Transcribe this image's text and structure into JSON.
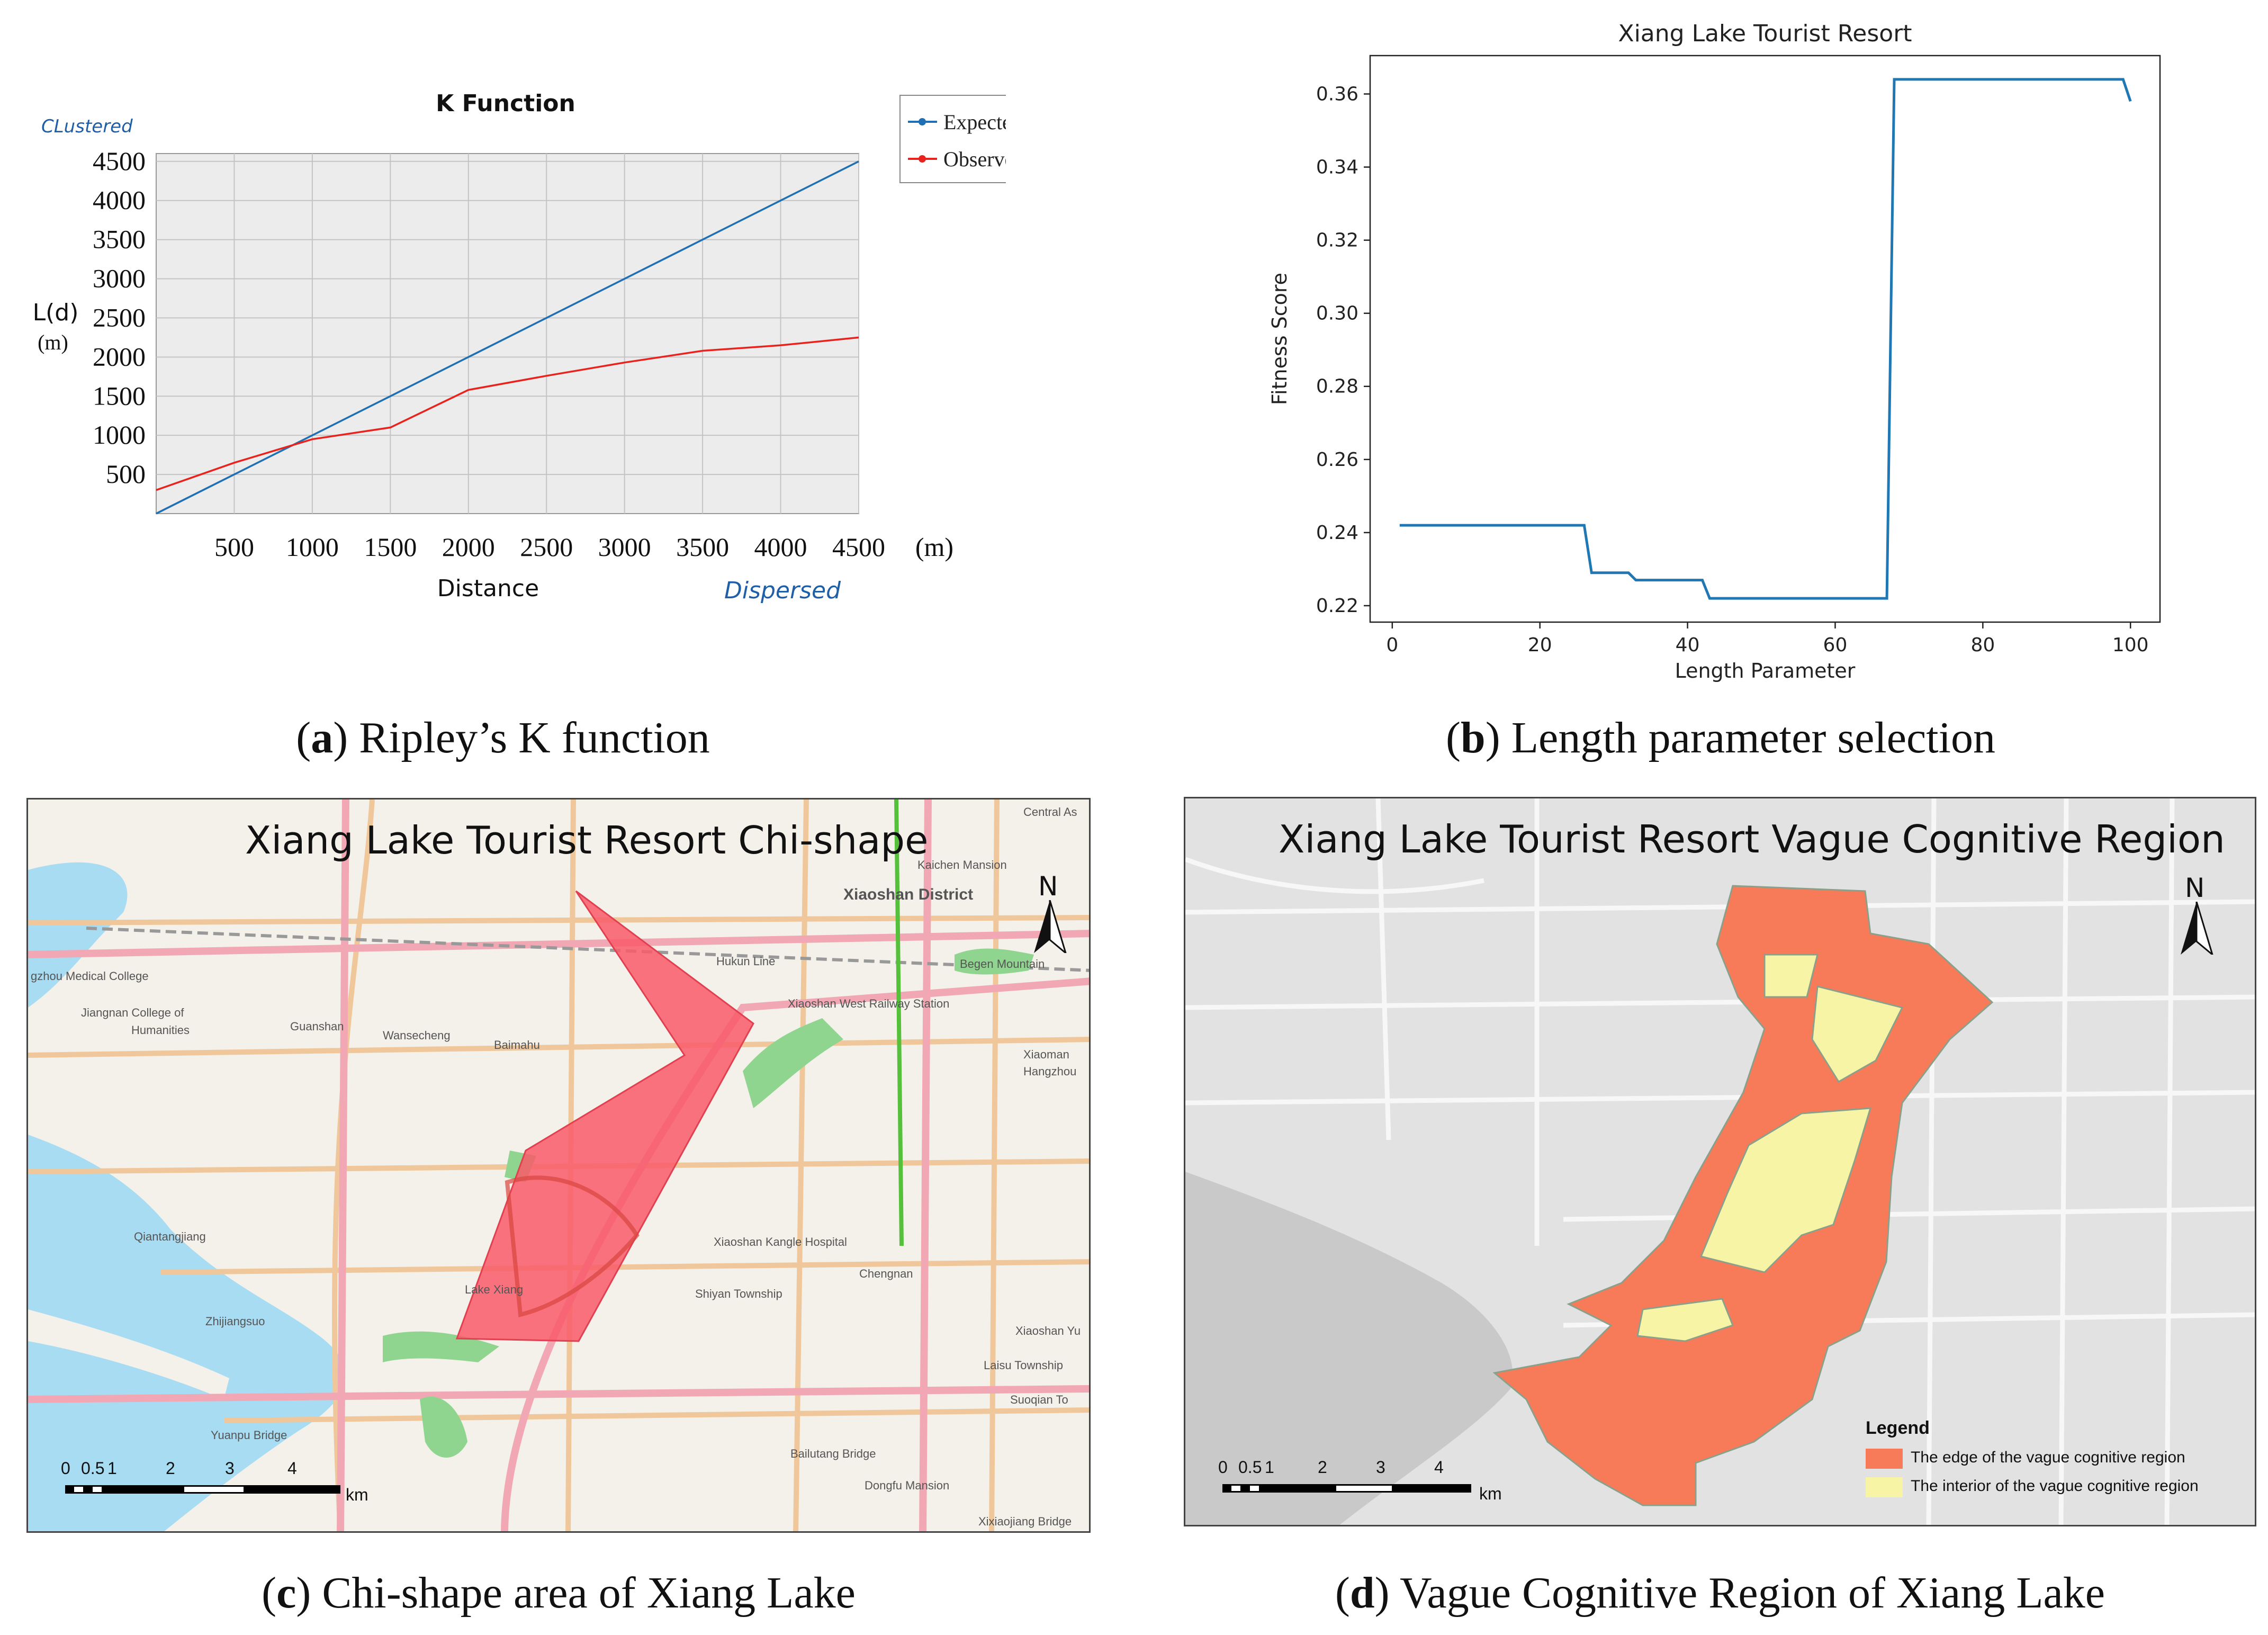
{
  "panel_a": {
    "title": "K Function",
    "clustered_label": "CLustered",
    "dispersed_label": "Dispersed",
    "ylabel": "L(d)",
    "ylabel_unit": "(m)",
    "xlabel": "Distance",
    "x_unit": "(m)",
    "caption_letter": "a",
    "caption_text": " Ripley’s K function"
  },
  "panel_b": {
    "title": "Xiang Lake Tourist Resort",
    "xlabel": "Length Parameter",
    "ylabel": "Fitness Score",
    "caption_letter": "b",
    "caption_text": " Length parameter selection"
  },
  "panel_c": {
    "title": "Xiang Lake Tourist Resort Chi-shape",
    "north": "N",
    "scale_labels": [
      "0",
      "0.5",
      "1",
      "2",
      "3",
      "4"
    ],
    "scale_unit": "km",
    "places": [
      {
        "name": "Xiaoshan District",
        "x": 1590,
        "y": 1670
      },
      {
        "name": "Kaichen Mansion",
        "x": 1730,
        "y": 1618
      },
      {
        "name": "Central As",
        "x": 1930,
        "y": 1518
      },
      {
        "name": "Hukun Line",
        "x": 1350,
        "y": 1800
      },
      {
        "name": "Begen Mountain",
        "x": 1810,
        "y": 1805
      },
      {
        "name": "Xiaoshan West Railway Station",
        "x": 1485,
        "y": 1880
      },
      {
        "name": "gzhou Medical College",
        "x": 55,
        "y": 1828
      },
      {
        "name": "Jiangnan College of",
        "x": 150,
        "y": 1897
      },
      {
        "name": "Humanities",
        "x": 245,
        "y": 1930
      },
      {
        "name": "Guanshan",
        "x": 545,
        "y": 1923
      },
      {
        "name": "Wansecheng",
        "x": 720,
        "y": 1940
      },
      {
        "name": "Baimahu",
        "x": 930,
        "y": 1958
      },
      {
        "name": "Xiaoman",
        "x": 1930,
        "y": 1976
      },
      {
        "name": "Hangzhou",
        "x": 1930,
        "y": 2008
      },
      {
        "name": "Qiantangjiang",
        "x": 250,
        "y": 2320
      },
      {
        "name": "Xiaoshan Kangle Hospital",
        "x": 1345,
        "y": 2330
      },
      {
        "name": "Chengnan",
        "x": 1620,
        "y": 2390
      },
      {
        "name": "Shiyan Township",
        "x": 1310,
        "y": 2428
      },
      {
        "name": "Lake Xiang",
        "x": 875,
        "y": 2420
      },
      {
        "name": "Zhijiangsuo",
        "x": 385,
        "y": 2480
      },
      {
        "name": "Xiaoshan Yu",
        "x": 1915,
        "y": 2498
      },
      {
        "name": "Laisu Township",
        "x": 1855,
        "y": 2563
      },
      {
        "name": "Suoqian To",
        "x": 1905,
        "y": 2628
      },
      {
        "name": "Yuanpu Bridge",
        "x": 395,
        "y": 2695
      },
      {
        "name": "Bailutang Bridge",
        "x": 1490,
        "y": 2730
      },
      {
        "name": "Dongfu Mansion",
        "x": 1630,
        "y": 2790
      },
      {
        "name": "Xixiaojiang Bridge",
        "x": 1845,
        "y": 2858
      }
    ],
    "caption_letter": "c",
    "caption_text": " Chi-shape area of Xiang Lake"
  },
  "panel_d": {
    "title": "Xiang Lake Tourist Resort Vague Cognitive Region",
    "north": "N",
    "legend_title": "Legend",
    "legend_edge": "The edge of the vague cognitive region",
    "legend_interior": "The interior of the vague cognitive region",
    "scale_labels": [
      "0",
      "0.5",
      "1",
      "2",
      "3",
      "4"
    ],
    "scale_unit": "km",
    "caption_letter": "d",
    "caption_text": " Vague Cognitive Region of Xiang Lake"
  },
  "colors": {
    "expected": "#1f6fb5",
    "observed": "#e8221c",
    "fitness": "#1f77b4",
    "edge_region": "#f77b58",
    "interior_region": "#f7f4a6",
    "chi_shape": "#f95a6a"
  },
  "chart_data": [
    {
      "type": "line",
      "title": "K Function",
      "xlabel": "Distance",
      "ylabel": "L(d)",
      "x": [
        0,
        500,
        1000,
        1500,
        2000,
        2500,
        3000,
        3500,
        4000,
        4500
      ],
      "xticks": [
        500,
        1000,
        1500,
        2000,
        2500,
        3000,
        3500,
        4000,
        4500
      ],
      "yticks": [
        500,
        1000,
        1500,
        2000,
        2500,
        3000,
        3500,
        4000,
        4500
      ],
      "xlim": [
        0,
        4500
      ],
      "ylim": [
        0,
        4600
      ],
      "grid": true,
      "legend": "top-right",
      "series": [
        {
          "name": "ExpectedK",
          "values": [
            0,
            500,
            1000,
            1500,
            2000,
            2500,
            3000,
            3500,
            4000,
            4500
          ]
        },
        {
          "name": "ObservedK",
          "values": [
            300,
            650,
            950,
            1100,
            1580,
            1760,
            1930,
            2080,
            2150,
            2250
          ]
        }
      ]
    },
    {
      "type": "line",
      "title": "Xiang Lake Tourist Resort",
      "xlabel": "Length Parameter",
      "ylabel": "Fitness Score",
      "xticks": [
        0,
        20,
        40,
        60,
        80,
        100
      ],
      "yticks": [
        0.22,
        0.24,
        0.26,
        0.28,
        0.3,
        0.32,
        0.34,
        0.36
      ],
      "xlim": [
        -3,
        104
      ],
      "ylim": [
        0.2155,
        0.3705
      ],
      "grid": false,
      "series": [
        {
          "name": "",
          "x": [
            1,
            26,
            27,
            32,
            33,
            42,
            43,
            67,
            68,
            99,
            100
          ],
          "values": [
            0.242,
            0.242,
            0.229,
            0.229,
            0.227,
            0.227,
            0.222,
            0.222,
            0.364,
            0.364,
            0.358
          ]
        }
      ]
    }
  ]
}
